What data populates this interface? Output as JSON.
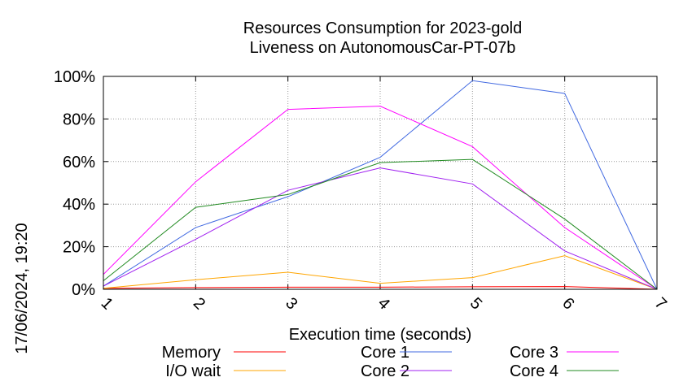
{
  "chart_data": {
    "type": "line",
    "title": [
      "Resources Consumption for 2023-gold",
      "Liveness on AutonomousCar-PT-07b"
    ],
    "xlabel": "Execution time (seconds)",
    "ylabel": "",
    "side_label": "17/06/2024, 19:20",
    "x": [
      1,
      2,
      3,
      4,
      5,
      6,
      7
    ],
    "xticks": [
      "1",
      "2",
      "3",
      "4",
      "5",
      "6",
      "7"
    ],
    "ylim": [
      0,
      100
    ],
    "yticks": [
      "0%",
      "20%",
      "40%",
      "60%",
      "80%",
      "100%"
    ],
    "grid": true,
    "legend_position": "bottom",
    "series": [
      {
        "name": "Memory",
        "color": "#ff0000",
        "values": [
          0.5,
          0.8,
          1.0,
          1.0,
          1.2,
          1.3,
          0
        ]
      },
      {
        "name": "I/O wait",
        "color": "#ffa500",
        "values": [
          0.5,
          4.5,
          8.0,
          2.8,
          5.5,
          15.8,
          0
        ]
      },
      {
        "name": "Core 1",
        "color": "#4169e1",
        "values": [
          1.5,
          29.0,
          43.5,
          62.0,
          98.0,
          92.0,
          0
        ]
      },
      {
        "name": "Core 2",
        "color": "#a020f0",
        "values": [
          1.5,
          23.5,
          46.5,
          57.0,
          49.5,
          18.0,
          0
        ]
      },
      {
        "name": "Core 3",
        "color": "#ff00ff",
        "values": [
          7.0,
          50.5,
          84.5,
          86.0,
          67.0,
          29.0,
          0
        ]
      },
      {
        "name": "Core 4",
        "color": "#228b22",
        "values": [
          4.0,
          38.5,
          44.5,
          59.5,
          61.0,
          33.0,
          0
        ]
      }
    ]
  }
}
